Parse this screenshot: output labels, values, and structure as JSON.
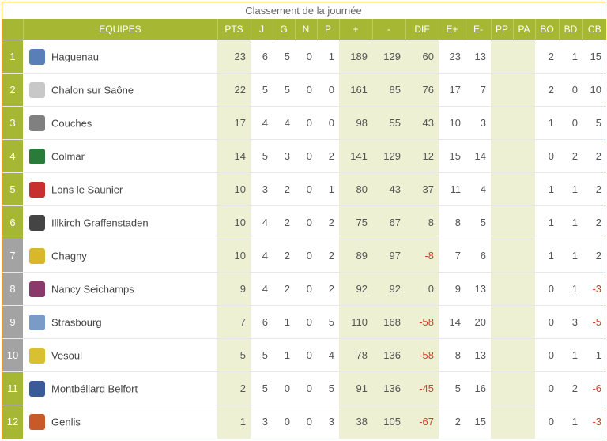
{
  "title": "Classement de la journée",
  "colors": {
    "header_bg": "#a6b734",
    "header_border": "#bccb5a",
    "rank_green": "#a6b734",
    "rank_gray": "#a3a3a3",
    "shade_bg": "#eef0d4",
    "neg_text": "#d63c2a",
    "text": "#555555",
    "border": "#e8851e",
    "row_border": "#e8e8e8"
  },
  "headers": {
    "team": "EQUIPES",
    "pts": "PTS",
    "j": "J",
    "g": "G",
    "n": "N",
    "p": "P",
    "plus": "+",
    "minus": "-",
    "dif": "DIF",
    "ep": "E+",
    "em": "E-",
    "pp": "PP",
    "pa": "PA",
    "bo": "BO",
    "bd": "BD",
    "cb": "CB"
  },
  "logo_colors": [
    "#5a7fb8",
    "#c8c8c8",
    "#808080",
    "#2a7a3a",
    "#c83030",
    "#444444",
    "#d8b82a",
    "#8a3a6a",
    "#7a9ac8",
    "#d8c030",
    "#3a5a9a",
    "#c85a2a"
  ],
  "rows": [
    {
      "rank": "1",
      "gray": false,
      "team": "Haguenau",
      "pts": "23",
      "j": "6",
      "g": "5",
      "n": "0",
      "p": "1",
      "plus": "189",
      "minus": "129",
      "dif": "60",
      "dif_neg": false,
      "ep": "23",
      "em": "13",
      "pp": "",
      "pa": "",
      "bo": "2",
      "bd": "1",
      "cb": "15",
      "cb_neg": false
    },
    {
      "rank": "2",
      "gray": false,
      "team": "Chalon sur Saône",
      "pts": "22",
      "j": "5",
      "g": "5",
      "n": "0",
      "p": "0",
      "plus": "161",
      "minus": "85",
      "dif": "76",
      "dif_neg": false,
      "ep": "17",
      "em": "7",
      "pp": "",
      "pa": "",
      "bo": "2",
      "bd": "0",
      "cb": "10",
      "cb_neg": false
    },
    {
      "rank": "3",
      "gray": false,
      "team": "Couches",
      "pts": "17",
      "j": "4",
      "g": "4",
      "n": "0",
      "p": "0",
      "plus": "98",
      "minus": "55",
      "dif": "43",
      "dif_neg": false,
      "ep": "10",
      "em": "3",
      "pp": "",
      "pa": "",
      "bo": "1",
      "bd": "0",
      "cb": "5",
      "cb_neg": false
    },
    {
      "rank": "4",
      "gray": false,
      "team": "Colmar",
      "pts": "14",
      "j": "5",
      "g": "3",
      "n": "0",
      "p": "2",
      "plus": "141",
      "minus": "129",
      "dif": "12",
      "dif_neg": false,
      "ep": "15",
      "em": "14",
      "pp": "",
      "pa": "",
      "bo": "0",
      "bd": "2",
      "cb": "2",
      "cb_neg": false
    },
    {
      "rank": "5",
      "gray": false,
      "team": "Lons le Saunier",
      "pts": "10",
      "j": "3",
      "g": "2",
      "n": "0",
      "p": "1",
      "plus": "80",
      "minus": "43",
      "dif": "37",
      "dif_neg": false,
      "ep": "11",
      "em": "4",
      "pp": "",
      "pa": "",
      "bo": "1",
      "bd": "1",
      "cb": "2",
      "cb_neg": false
    },
    {
      "rank": "6",
      "gray": false,
      "team": "Illkirch Graffenstaden",
      "pts": "10",
      "j": "4",
      "g": "2",
      "n": "0",
      "p": "2",
      "plus": "75",
      "minus": "67",
      "dif": "8",
      "dif_neg": false,
      "ep": "8",
      "em": "5",
      "pp": "",
      "pa": "",
      "bo": "1",
      "bd": "1",
      "cb": "2",
      "cb_neg": false
    },
    {
      "rank": "7",
      "gray": true,
      "team": "Chagny",
      "pts": "10",
      "j": "4",
      "g": "2",
      "n": "0",
      "p": "2",
      "plus": "89",
      "minus": "97",
      "dif": "-8",
      "dif_neg": true,
      "ep": "7",
      "em": "6",
      "pp": "",
      "pa": "",
      "bo": "1",
      "bd": "1",
      "cb": "2",
      "cb_neg": false
    },
    {
      "rank": "8",
      "gray": true,
      "team": "Nancy Seichamps",
      "pts": "9",
      "j": "4",
      "g": "2",
      "n": "0",
      "p": "2",
      "plus": "92",
      "minus": "92",
      "dif": "0",
      "dif_neg": false,
      "ep": "9",
      "em": "13",
      "pp": "",
      "pa": "",
      "bo": "0",
      "bd": "1",
      "cb": "-3",
      "cb_neg": true
    },
    {
      "rank": "9",
      "gray": true,
      "team": "Strasbourg",
      "pts": "7",
      "j": "6",
      "g": "1",
      "n": "0",
      "p": "5",
      "plus": "110",
      "minus": "168",
      "dif": "-58",
      "dif_neg": true,
      "ep": "14",
      "em": "20",
      "pp": "",
      "pa": "",
      "bo": "0",
      "bd": "3",
      "cb": "-5",
      "cb_neg": true
    },
    {
      "rank": "10",
      "gray": true,
      "team": "Vesoul",
      "pts": "5",
      "j": "5",
      "g": "1",
      "n": "0",
      "p": "4",
      "plus": "78",
      "minus": "136",
      "dif": "-58",
      "dif_neg": true,
      "ep": "8",
      "em": "13",
      "pp": "",
      "pa": "",
      "bo": "0",
      "bd": "1",
      "cb": "1",
      "cb_neg": false
    },
    {
      "rank": "11",
      "gray": false,
      "team": "Montbéliard Belfort",
      "pts": "2",
      "j": "5",
      "g": "0",
      "n": "0",
      "p": "5",
      "plus": "91",
      "minus": "136",
      "dif": "-45",
      "dif_neg": true,
      "ep": "5",
      "em": "16",
      "pp": "",
      "pa": "",
      "bo": "0",
      "bd": "2",
      "cb": "-6",
      "cb_neg": true
    },
    {
      "rank": "12",
      "gray": false,
      "team": "Genlis",
      "pts": "1",
      "j": "3",
      "g": "0",
      "n": "0",
      "p": "3",
      "plus": "38",
      "minus": "105",
      "dif": "-67",
      "dif_neg": true,
      "ep": "2",
      "em": "15",
      "pp": "",
      "pa": "",
      "bo": "0",
      "bd": "1",
      "cb": "-3",
      "cb_neg": true
    }
  ]
}
